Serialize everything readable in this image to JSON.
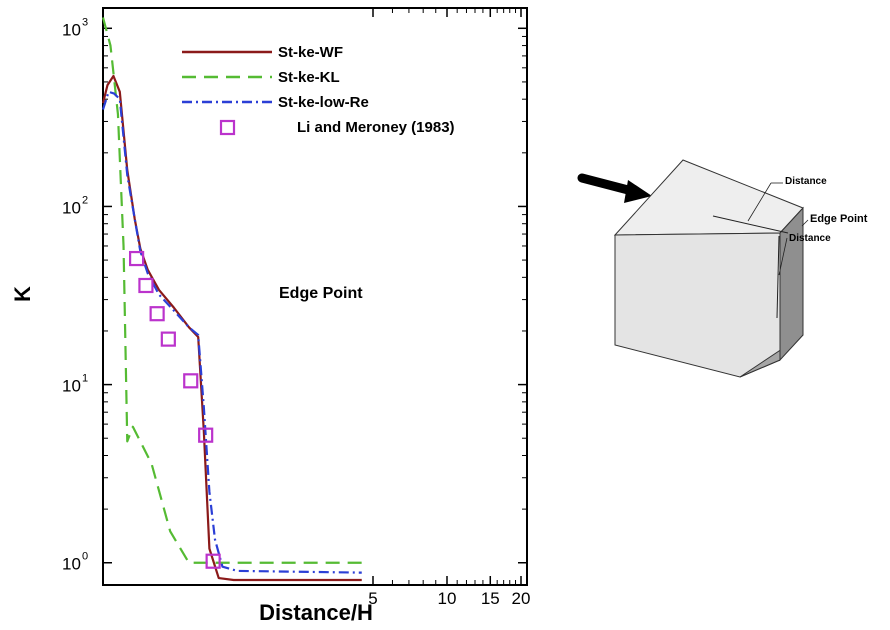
{
  "chart_data": {
    "type": "line",
    "title": "",
    "xlabel": "Distance/H",
    "ylabel": "K",
    "yscale": "log",
    "ylim": [
      0.75,
      1300
    ],
    "xlim": [
      0,
      20
    ],
    "grid": false,
    "legend_position": "top-center",
    "x_ticks": [
      {
        "value": 5,
        "label": "5"
      },
      {
        "value": 10,
        "label": "10"
      },
      {
        "value": 15,
        "label": "15"
      },
      {
        "value": 20,
        "label": "20"
      }
    ],
    "y_ticks": [
      {
        "value": 1,
        "label": "10",
        "exp": "0"
      },
      {
        "value": 10,
        "label": "10",
        "exp": "1"
      },
      {
        "value": 100,
        "label": "10",
        "exp": "2"
      },
      {
        "value": 1000,
        "label": "10",
        "exp": "3"
      }
    ],
    "annotation": "Edge Point",
    "series": [
      {
        "name": "St-ke-WF",
        "style": "solid",
        "color": "#8b1a1a",
        "x": [
          0.0,
          0.12,
          0.28,
          0.45,
          0.65,
          0.85,
          1.0,
          1.2,
          1.5,
          1.9,
          2.3,
          2.55,
          2.7,
          2.85,
          3.1,
          3.5,
          4.2,
          4.5
        ],
        "y": [
          380,
          480,
          540,
          440,
          160,
          85,
          58,
          44,
          34,
          27,
          21,
          18.5,
          5.5,
          1.2,
          0.82,
          0.8,
          0.8,
          0.8
        ]
      },
      {
        "name": "St-ke-KL",
        "style": "dashed",
        "color": "#55bb33",
        "x": [
          0.0,
          0.2,
          0.4,
          0.55,
          0.65,
          0.8,
          1.3,
          1.8,
          2.3,
          2.6,
          3.1,
          4.5
        ],
        "y": [
          1150,
          800,
          330,
          60,
          4.8,
          5.8,
          3.6,
          1.5,
          1.0,
          1.0,
          1.0,
          1.0
        ]
      },
      {
        "name": "St-ke-low-Re",
        "style": "dashdot",
        "color": "#2b3fd6",
        "x": [
          0.0,
          0.15,
          0.3,
          0.45,
          0.65,
          0.85,
          1.0,
          1.2,
          1.5,
          1.9,
          2.3,
          2.55,
          2.7,
          2.85,
          3.0,
          3.2,
          3.6,
          4.5
        ],
        "y": [
          350,
          440,
          430,
          400,
          150,
          85,
          56,
          42,
          32,
          26,
          21,
          19,
          7.5,
          2.5,
          1.35,
          0.95,
          0.9,
          0.88
        ]
      },
      {
        "name": "Li and Meroney (1983)",
        "style": "marker",
        "marker": "square",
        "color": "#bb33cc",
        "x": [
          0.9,
          1.15,
          1.45,
          1.75,
          2.35,
          2.75,
          2.95
        ],
        "y": [
          51,
          36,
          25,
          18,
          10.5,
          5.2,
          1.02
        ]
      }
    ]
  },
  "diagram": {
    "label_distance_top": "Distance",
    "label_edge_point": "Edge Point",
    "label_distance_side": "Distance"
  },
  "colors": {
    "axis": "#000000",
    "cube_top": "#eeeeee",
    "cube_front": "#e4e4e4",
    "cube_side": "#a5a5a5"
  }
}
